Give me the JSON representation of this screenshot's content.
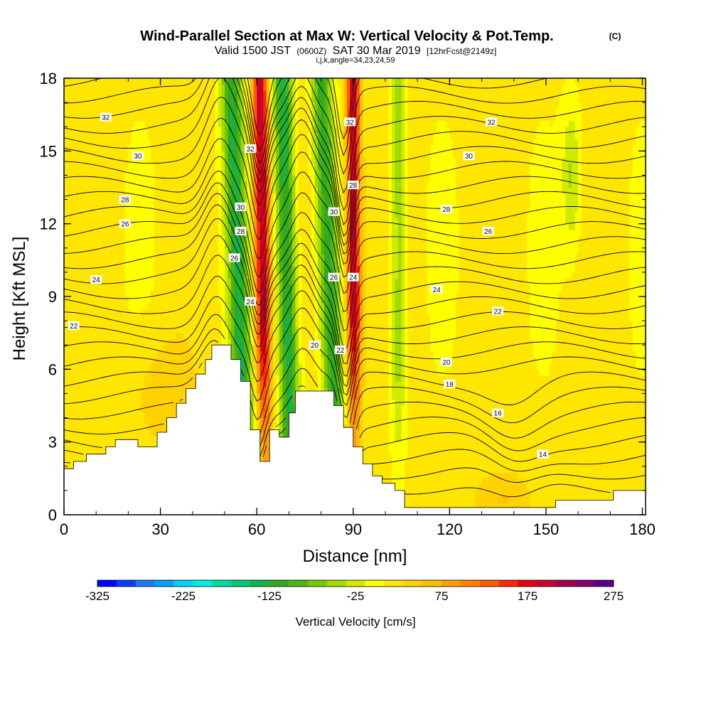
{
  "chart_data": {
    "type": "heatmap",
    "title": "Wind-Parallel Section at Max W: Vertical Velocity & Pot.Temp.",
    "title_mark": "(C)",
    "subtitle_parts": [
      "Valid 1500 JST",
      "(0600Z)",
      "SAT 30 Mar 2019",
      "[12hrFcst@2149z]"
    ],
    "subsubtitle": "i,j,k,angle=34,23,24,59",
    "xlabel": "Distance [nm]",
    "ylabel": "Height [Kft MSL]",
    "xlim": [
      0,
      181
    ],
    "ylim": [
      0,
      18
    ],
    "xticks": [
      0,
      30,
      60,
      90,
      120,
      150,
      180
    ],
    "yticks": [
      0,
      3,
      6,
      9,
      12,
      15,
      18
    ],
    "colorbar": {
      "label": "Vertical Velocity [cm/s]",
      "range": [
        -325,
        275
      ],
      "ticks": [
        -325,
        -225,
        -125,
        -25,
        75,
        175,
        275
      ],
      "colors": [
        "#0000ff",
        "#0a3cff",
        "#1e78ff",
        "#00a0ff",
        "#00d2ff",
        "#00f0e0",
        "#00dca0",
        "#00c878",
        "#10b450",
        "#30aa20",
        "#50b410",
        "#78c800",
        "#a0dc00",
        "#d2ea00",
        "#ffff00",
        "#ffe600",
        "#ffd200",
        "#ffbe00",
        "#ffa000",
        "#ff8200",
        "#ff5a00",
        "#ff2800",
        "#e60014",
        "#c80032",
        "#a00050",
        "#7d006e",
        "#5a008c"
      ]
    },
    "theta_labels": [
      {
        "x": 13,
        "y": 16.4,
        "v": "32"
      },
      {
        "x": 23,
        "y": 14.8,
        "v": "30"
      },
      {
        "x": 19,
        "y": 13.0,
        "v": "28"
      },
      {
        "x": 19,
        "y": 12.0,
        "v": "26"
      },
      {
        "x": 10,
        "y": 9.7,
        "v": "24"
      },
      {
        "x": 3,
        "y": 7.8,
        "v": "22"
      },
      {
        "x": 58,
        "y": 15.1,
        "v": "32"
      },
      {
        "x": 55,
        "y": 12.7,
        "v": "30"
      },
      {
        "x": 55,
        "y": 11.7,
        "v": "28"
      },
      {
        "x": 53,
        "y": 10.6,
        "v": "26"
      },
      {
        "x": 58,
        "y": 8.8,
        "v": "24"
      },
      {
        "x": 78,
        "y": 7.0,
        "v": "20"
      },
      {
        "x": 89,
        "y": 16.2,
        "v": "32"
      },
      {
        "x": 90,
        "y": 13.6,
        "v": "28"
      },
      {
        "x": 84,
        "y": 12.5,
        "v": "30"
      },
      {
        "x": 84,
        "y": 9.8,
        "v": "26"
      },
      {
        "x": 90,
        "y": 9.8,
        "v": "24"
      },
      {
        "x": 86,
        "y": 6.8,
        "v": "22"
      },
      {
        "x": 133,
        "y": 16.2,
        "v": "32"
      },
      {
        "x": 126,
        "y": 14.8,
        "v": "30"
      },
      {
        "x": 119,
        "y": 12.6,
        "v": "28"
      },
      {
        "x": 132,
        "y": 11.7,
        "v": "26"
      },
      {
        "x": 116,
        "y": 9.3,
        "v": "24"
      },
      {
        "x": 135,
        "y": 8.4,
        "v": "22"
      },
      {
        "x": 119,
        "y": 6.3,
        "v": "20"
      },
      {
        "x": 120,
        "y": 5.4,
        "v": "18"
      },
      {
        "x": 135,
        "y": 4.2,
        "v": "16"
      },
      {
        "x": 149,
        "y": 2.5,
        "v": "14"
      }
    ]
  }
}
